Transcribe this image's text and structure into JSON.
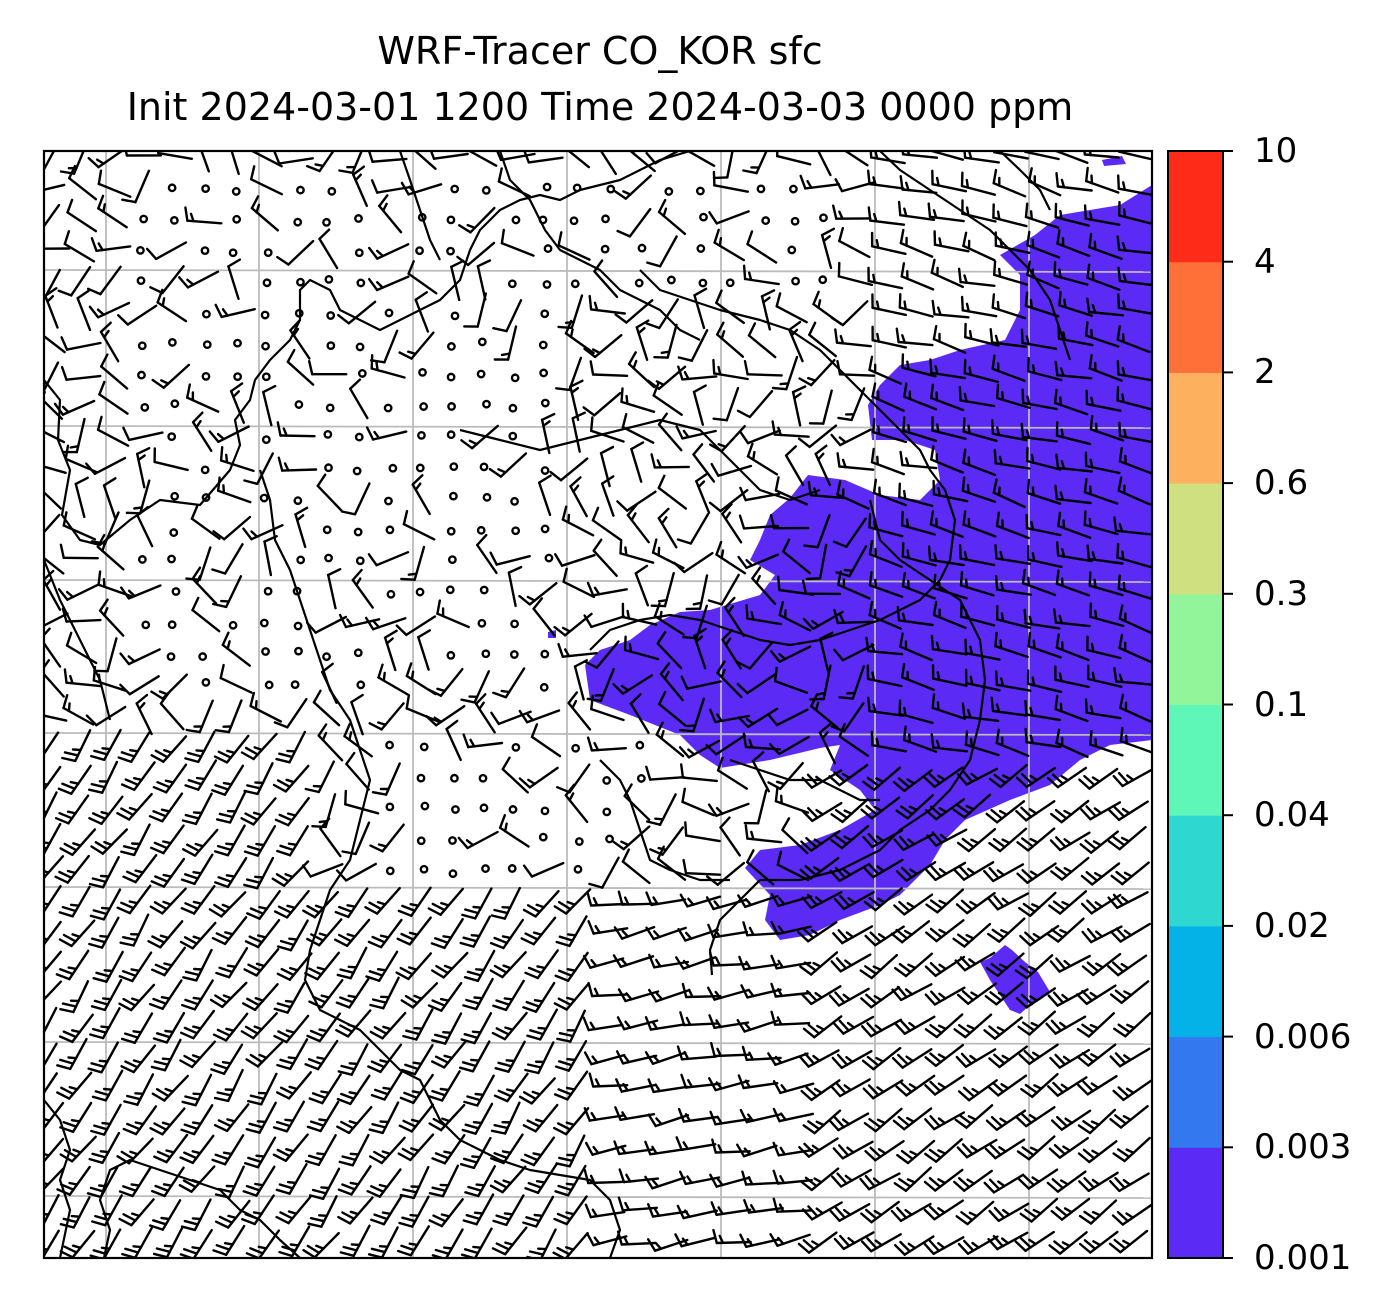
{
  "title": {
    "line1": "WRF-Tracer CO_KOR sfc",
    "line2": "Init 2024-03-01 1200 Time 2024-03-03 0000 ppm"
  },
  "colorbar": {
    "levels": [
      "0.001",
      "0.003",
      "0.006",
      "0.02",
      "0.04",
      "0.1",
      "0.3",
      "0.6",
      "2",
      "4",
      "10"
    ],
    "colors": [
      "#5b2bf5",
      "#3478f0",
      "#05b2e8",
      "#2ed8d0",
      "#5ff7b8",
      "#92f59a",
      "#cfe081",
      "#fdb05e",
      "#fe7038",
      "#fe2b18"
    ]
  },
  "map": {
    "field": "CO_KOR surface tracer concentration",
    "fill_color": "#5b2bf5",
    "gridline_color": "#bbbbbb",
    "overlays": [
      "coastlines",
      "wind-barbs",
      "lat-lon-gridlines"
    ]
  }
}
